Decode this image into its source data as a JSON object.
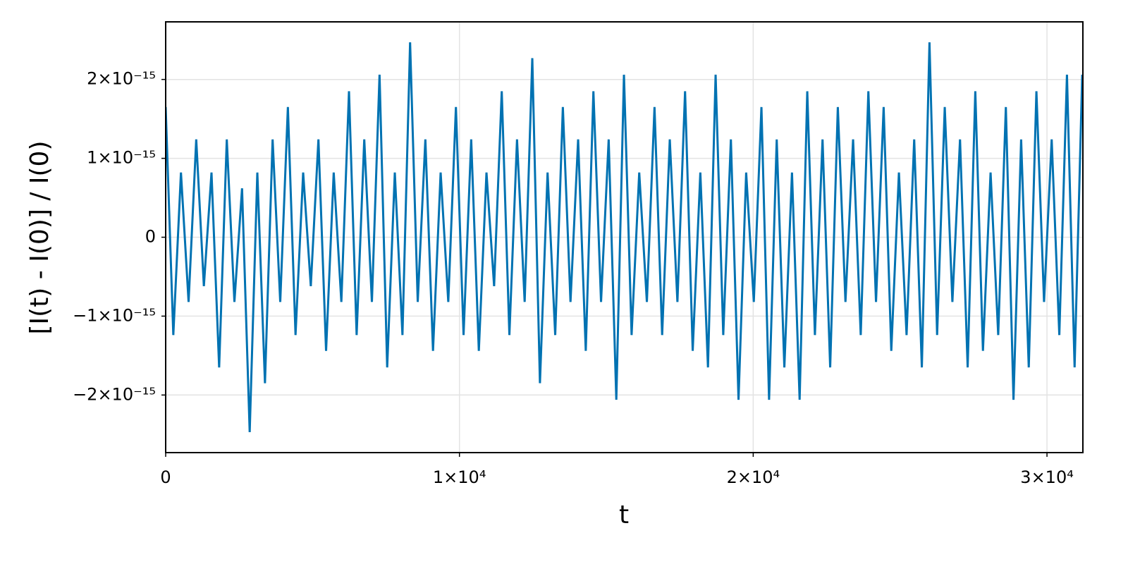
{
  "chart_data": {
    "type": "line",
    "xlabel": "t",
    "ylabel": "[I(t) - I(0)] / I(0)",
    "color": "#0072b2",
    "grid": true,
    "xlim": [
      0,
      31222
    ],
    "ylim": [
      -2.73e-15,
      2.73e-15
    ],
    "xticks": [
      0,
      {
        "value": 10000,
        "label": "1×10⁴"
      },
      {
        "value": 20000,
        "label": "2×10⁴"
      },
      {
        "value": 30000,
        "label": "3×10⁴"
      }
    ],
    "yticks": [
      {
        "value": -2e-15,
        "label": "−2×10⁻¹⁵"
      },
      {
        "value": -1e-15,
        "label": "−1×10⁻¹⁵"
      },
      0,
      {
        "value": 1e-15,
        "label": "1×10⁻¹⁵"
      },
      {
        "value": 2e-15,
        "label": "2×10⁻¹⁵"
      }
    ],
    "x": [
      0,
      260,
      520,
      780,
      1040,
      1300,
      1560,
      1820,
      2080,
      2340,
      2600,
      2860,
      3120,
      3380,
      3640,
      3900,
      4160,
      4420,
      4680,
      4940,
      5200,
      5460,
      5720,
      5980,
      6240,
      6500,
      6760,
      7020,
      7280,
      7540,
      7800,
      8060,
      8320,
      8580,
      8840,
      9100,
      9360,
      9620,
      9880,
      10140,
      10400,
      10660,
      10920,
      11180,
      11440,
      11700,
      11960,
      12220,
      12480,
      12740,
      13000,
      13260,
      13520,
      13780,
      14040,
      14300,
      14560,
      14820,
      15080,
      15340,
      15600,
      15860,
      16120,
      16380,
      16640,
      16900,
      17160,
      17420,
      17680,
      17940,
      18200,
      18460,
      18720,
      18980,
      19240,
      19500,
      19760,
      20020,
      20280,
      20540,
      20800,
      21060,
      21320,
      21580,
      21840,
      22100,
      22360,
      22620,
      22880,
      23140,
      23400,
      23660,
      23920,
      24180,
      24440,
      24700,
      24960,
      25220,
      25480,
      25740,
      26000,
      26260,
      26520,
      26780,
      27040,
      27300,
      27560,
      27820,
      28080,
      28340,
      28600,
      28860,
      29120,
      29380,
      29640,
      29900,
      30160,
      30420,
      30680,
      30940,
      31200
    ],
    "values": [
      1.65e-15,
      -1.24e-15,
      8.2e-16,
      -8.2e-16,
      1.24e-15,
      -6.2e-16,
      8.2e-16,
      -1.65e-15,
      1.24e-15,
      -8.2e-16,
      6.2e-16,
      -2.47e-15,
      8.2e-16,
      -1.85e-15,
      1.24e-15,
      -8.2e-16,
      1.65e-15,
      -1.24e-15,
      8.2e-16,
      -6.2e-16,
      1.24e-15,
      -1.44e-15,
      8.2e-16,
      -8.2e-16,
      1.85e-15,
      -1.24e-15,
      1.24e-15,
      -8.2e-16,
      2.06e-15,
      -1.65e-15,
      8.2e-16,
      -1.24e-15,
      2.47e-15,
      -8.2e-16,
      1.24e-15,
      -1.44e-15,
      8.2e-16,
      -8.2e-16,
      1.65e-15,
      -1.24e-15,
      1.24e-15,
      -1.44e-15,
      8.2e-16,
      -6.2e-16,
      1.85e-15,
      -1.24e-15,
      1.24e-15,
      -8.2e-16,
      2.27e-15,
      -1.85e-15,
      8.2e-16,
      -1.24e-15,
      1.65e-15,
      -8.2e-16,
      1.24e-15,
      -1.44e-15,
      1.85e-15,
      -8.2e-16,
      1.24e-15,
      -2.06e-15,
      2.06e-15,
      -1.24e-15,
      8.2e-16,
      -8.2e-16,
      1.65e-15,
      -1.24e-15,
      1.24e-15,
      -8.2e-16,
      1.85e-15,
      -1.44e-15,
      8.2e-16,
      -1.65e-15,
      2.06e-15,
      -1.24e-15,
      1.24e-15,
      -2.06e-15,
      8.2e-16,
      -8.2e-16,
      1.65e-15,
      -2.06e-15,
      1.24e-15,
      -1.65e-15,
      8.2e-16,
      -2.06e-15,
      1.85e-15,
      -1.24e-15,
      1.24e-15,
      -1.65e-15,
      1.65e-15,
      -8.2e-16,
      1.24e-15,
      -1.24e-15,
      1.85e-15,
      -8.2e-16,
      1.65e-15,
      -1.44e-15,
      8.2e-16,
      -1.24e-15,
      1.24e-15,
      -1.65e-15,
      2.47e-15,
      -1.24e-15,
      1.65e-15,
      -8.2e-16,
      1.24e-15,
      -1.65e-15,
      1.85e-15,
      -1.44e-15,
      8.2e-16,
      -1.24e-15,
      1.65e-15,
      -2.06e-15,
      1.24e-15,
      -1.65e-15,
      1.85e-15,
      -8.2e-16,
      1.24e-15,
      -1.24e-15,
      2.06e-15,
      -1.65e-15,
      2.06e-15
    ]
  }
}
